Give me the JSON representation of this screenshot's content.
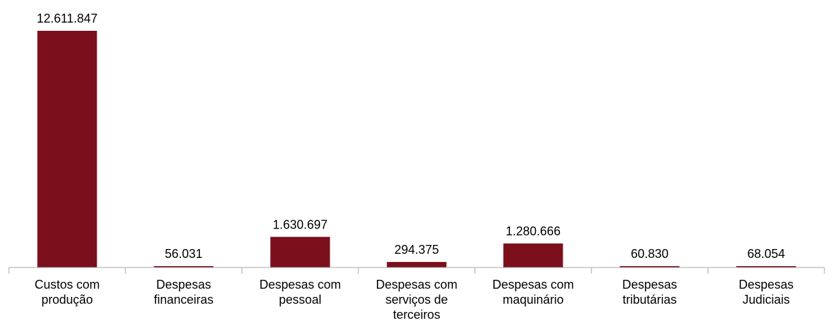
{
  "chart_data": {
    "type": "bar",
    "title": "",
    "xlabel": "",
    "ylabel": "",
    "categories": [
      [
        "Custos com",
        "produção"
      ],
      [
        "Despesas",
        "financeiras"
      ],
      [
        "Despesas com",
        "pessoal"
      ],
      [
        "Despesas com",
        "serviços de",
        "terceiros"
      ],
      [
        "Despesas com",
        "maquinário"
      ],
      [
        "Despesas",
        "tributárias"
      ],
      [
        "Despesas",
        "Judiciais"
      ]
    ],
    "values": [
      12611847,
      56031,
      1630697,
      294375,
      1280666,
      60830,
      68054
    ],
    "value_labels": [
      "12.611.847",
      "56.031",
      "1.630.697",
      "294.375",
      "1.280.666",
      "60.830",
      "68.054"
    ],
    "ylim": [
      0,
      12611847
    ],
    "grid": false,
    "legend": "none",
    "colors": {
      "bar": "#7b0f1c",
      "axis": "#a6a6a6",
      "text": "#000000"
    }
  }
}
